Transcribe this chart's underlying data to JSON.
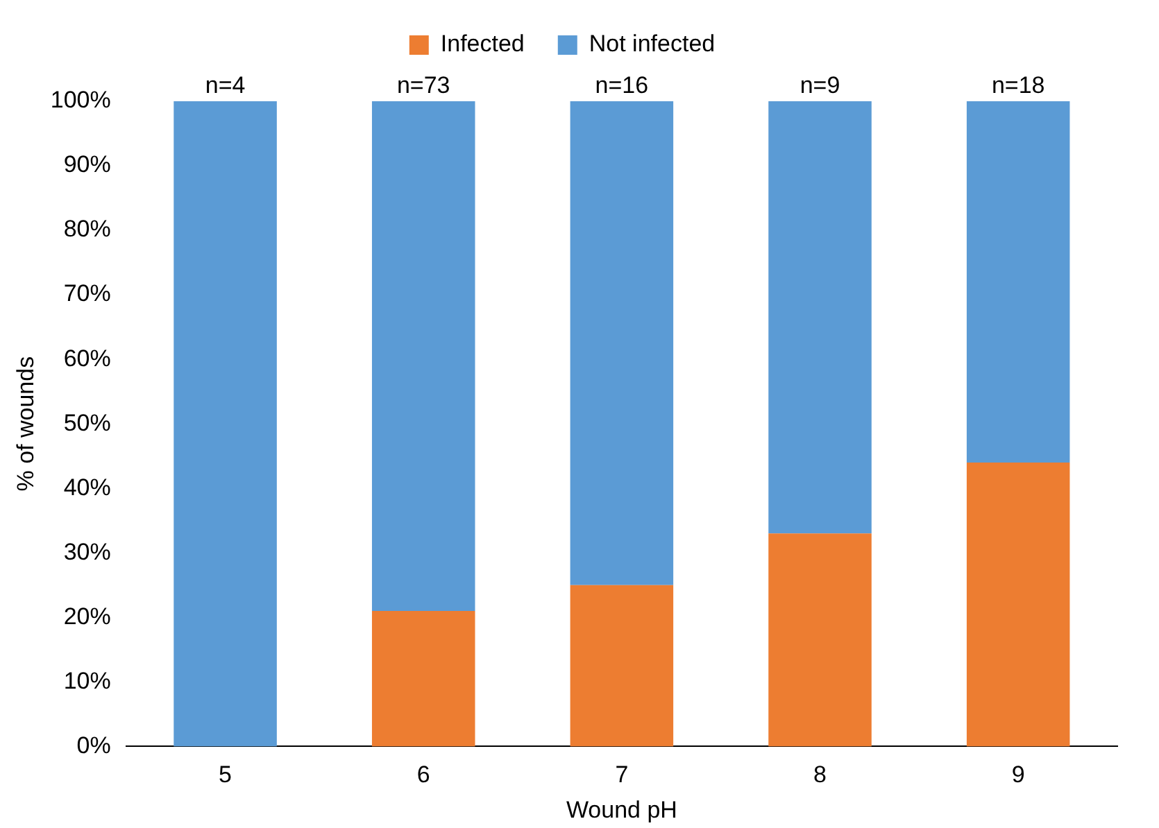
{
  "chart_data": {
    "type": "bar",
    "stacked": true,
    "xlabel": "Wound pH",
    "ylabel": "% of wounds",
    "categories": [
      "5",
      "6",
      "7",
      "8",
      "9"
    ],
    "series": [
      {
        "name": "Infected",
        "color": "#ed7d31",
        "values": [
          0,
          21,
          25,
          33,
          44
        ]
      },
      {
        "name": "Not infected",
        "color": "#5b9bd5",
        "values": [
          100,
          79,
          75,
          67,
          56
        ]
      }
    ],
    "ylim": [
      0,
      100
    ],
    "yticks": [
      {
        "value": 0,
        "label": "0%"
      },
      {
        "value": 10,
        "label": "10%"
      },
      {
        "value": 20,
        "label": "20%"
      },
      {
        "value": 30,
        "label": "30%"
      },
      {
        "value": 40,
        "label": "40%"
      },
      {
        "value": 50,
        "label": "50%"
      },
      {
        "value": 60,
        "label": "60%"
      },
      {
        "value": 70,
        "label": "70%"
      },
      {
        "value": 80,
        "label": "80%"
      },
      {
        "value": 90,
        "label": "90%"
      },
      {
        "value": 100,
        "label": "100%"
      }
    ],
    "annotations": [
      {
        "text": "n=4",
        "x": "5",
        "y": 100
      },
      {
        "text": "n=73",
        "x": "6",
        "y": 100
      },
      {
        "text": "n=16",
        "x": "7",
        "y": 100
      },
      {
        "text": "n=9",
        "x": "8",
        "y": 100
      },
      {
        "text": "n=18",
        "x": "9",
        "y": 100
      }
    ],
    "grid": false,
    "legend": "top"
  }
}
